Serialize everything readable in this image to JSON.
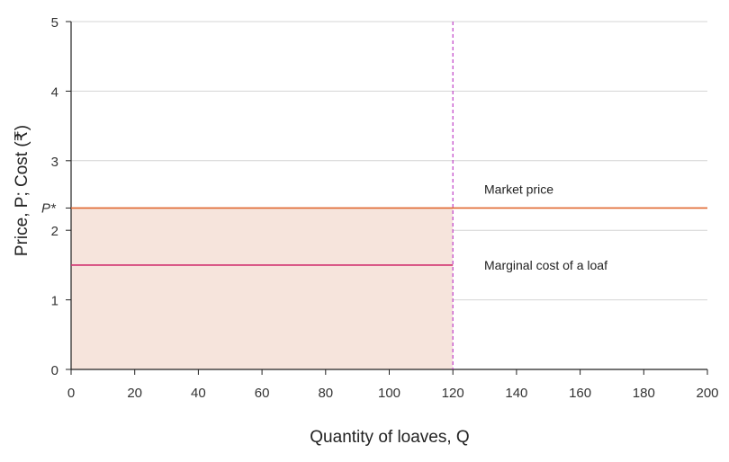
{
  "chart_data": {
    "type": "line",
    "xlabel": "Quantity of loaves, Q",
    "ylabel": "Price, P; Cost (₹)",
    "xlim": [
      0,
      200
    ],
    "ylim": [
      0,
      5
    ],
    "x_ticks": [
      0,
      20,
      40,
      60,
      80,
      100,
      120,
      140,
      160,
      180,
      200
    ],
    "y_ticks": [
      0,
      1,
      2,
      3,
      4,
      5
    ],
    "grid": "horizontal",
    "lines": [
      {
        "name": "Market price",
        "y": 2.32,
        "x_range": [
          0,
          200
        ],
        "color": "#e0672f"
      },
      {
        "name": "Marginal cost of a loaf",
        "y": 1.5,
        "x_range": [
          0,
          120
        ],
        "color": "#d0306e"
      }
    ],
    "vertical_line": {
      "x": 120,
      "y_range": [
        0,
        5
      ],
      "style": "dashed",
      "color": "#c040c8"
    },
    "shaded_region": {
      "x_range": [
        0,
        120
      ],
      "y_range": [
        0,
        2.32
      ],
      "color": "#f6e4dc"
    },
    "y_marker": {
      "label": "P*",
      "y": 2.32
    }
  }
}
